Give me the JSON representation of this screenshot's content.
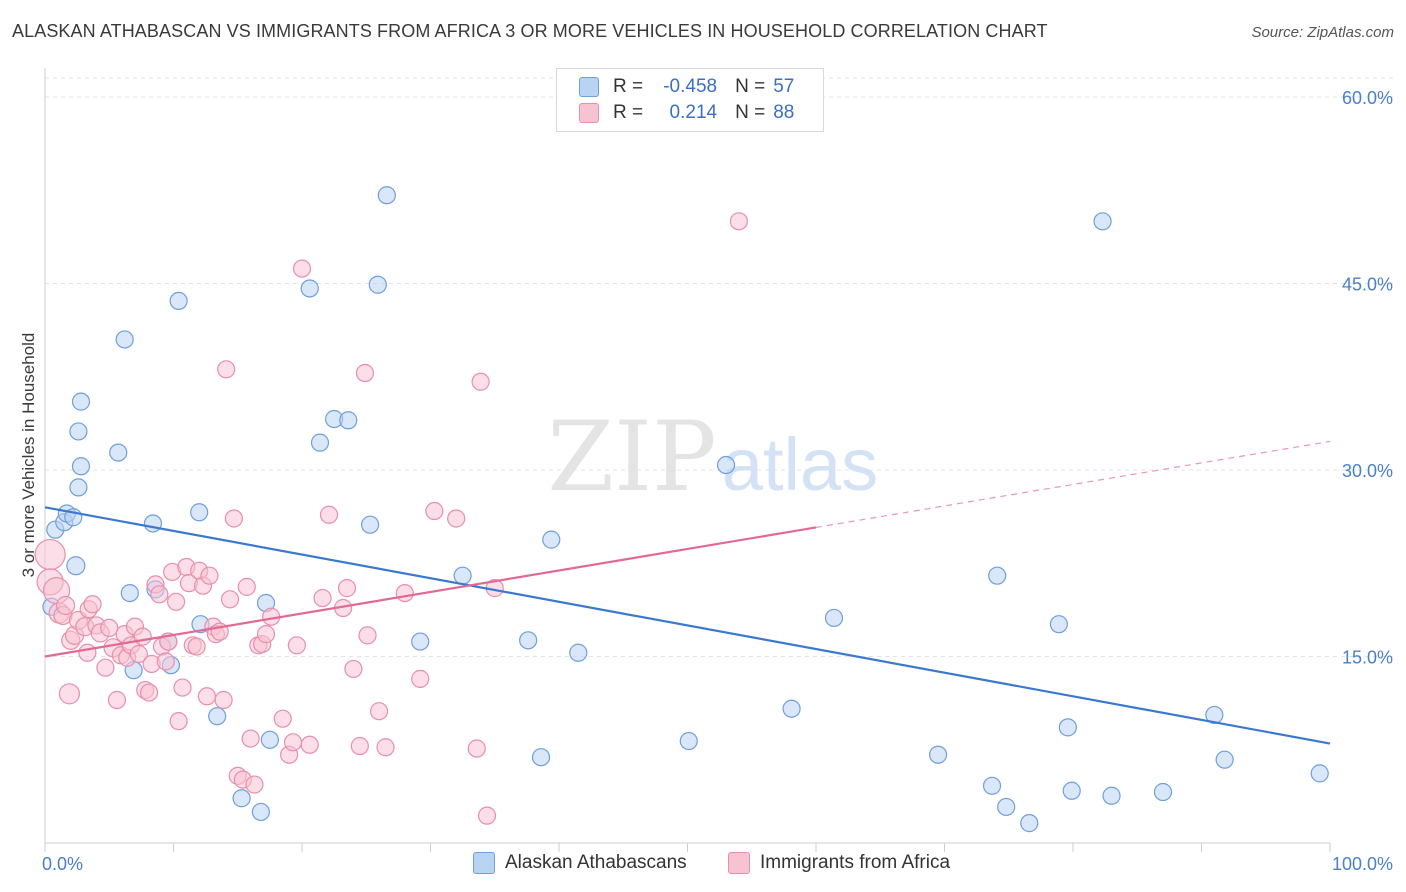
{
  "title": "ALASKAN ATHABASCAN VS IMMIGRANTS FROM AFRICA 3 OR MORE VEHICLES IN HOUSEHOLD CORRELATION CHART",
  "source": "Source: ZipAtlas.com",
  "watermark": {
    "zip": "ZIP",
    "atlas": "atlas"
  },
  "colors": {
    "blue_fill": "#b9d3f3",
    "blue_stroke": "#6f9fdc",
    "blue_line": "#3b78d0",
    "pink_fill": "#f7c3d3",
    "pink_stroke": "#e88fab",
    "pink_line": "#e26a92",
    "tick_text": "#4a7fc9",
    "grid": "#e3e3e3"
  },
  "legend": {
    "rows": [
      {
        "r_label": "R =",
        "r_value": "-0.458",
        "n_label": "N =",
        "n_value": "57"
      },
      {
        "r_label": "R =",
        "r_value": " 0.214",
        "n_label": "N =",
        "n_value": "88"
      }
    ]
  },
  "chart_data": {
    "type": "scatter",
    "xlabel": "",
    "ylabel": "3 or more Vehicles in Household",
    "xlim": [
      0,
      100
    ],
    "ylim": [
      0,
      62
    ],
    "y_ticks": [
      {
        "value": 15,
        "label": "15.0%"
      },
      {
        "value": 30,
        "label": "30.0%"
      },
      {
        "value": 45,
        "label": "45.0%"
      },
      {
        "value": 60,
        "label": "60.0%"
      }
    ],
    "x_ticks": [
      {
        "value": 0,
        "label": "0.0%"
      },
      {
        "value": 100,
        "label": "100.0%"
      }
    ],
    "x_minor_ticks": [
      0,
      10,
      20,
      30,
      40,
      50,
      60,
      70,
      80,
      90,
      100
    ],
    "grid": true,
    "legend_position": "top-center",
    "series": [
      {
        "name": "Alaskan Athabascans",
        "color_key": "blue",
        "trend": {
          "x0": 0,
          "y0": 27.0,
          "x1": 100,
          "y1": 8.0,
          "dashed_from": null
        },
        "points": [
          [
            0.5,
            19.0,
            6
          ],
          [
            0.8,
            25.2,
            7
          ],
          [
            1.5,
            25.8,
            7
          ],
          [
            1.7,
            26.5,
            7
          ],
          [
            2.2,
            26.2,
            7
          ],
          [
            2.6,
            28.6,
            7
          ],
          [
            2.4,
            22.3,
            8
          ],
          [
            2.8,
            30.3,
            7
          ],
          [
            2.6,
            33.1,
            7
          ],
          [
            2.8,
            35.5,
            7
          ],
          [
            5.7,
            31.4,
            7
          ],
          [
            6.2,
            40.5,
            7
          ],
          [
            6.6,
            20.1,
            7
          ],
          [
            6.9,
            13.9,
            7
          ],
          [
            8.4,
            25.7,
            7
          ],
          [
            8.6,
            20.4,
            7
          ],
          [
            9.6,
            16.2,
            7
          ],
          [
            9.8,
            14.3,
            7
          ],
          [
            10.4,
            43.6,
            7
          ],
          [
            12.0,
            26.6,
            7
          ],
          [
            12.1,
            17.6,
            7
          ],
          [
            13.4,
            10.2,
            7
          ],
          [
            15.3,
            3.6,
            7
          ],
          [
            16.8,
            2.5,
            7
          ],
          [
            17.2,
            19.3,
            7
          ],
          [
            17.5,
            8.3,
            7
          ],
          [
            20.6,
            44.6,
            7
          ],
          [
            21.4,
            32.2,
            7
          ],
          [
            22.5,
            34.1,
            7
          ],
          [
            23.6,
            34.0,
            7
          ],
          [
            25.3,
            25.6,
            7
          ],
          [
            25.9,
            44.9,
            7
          ],
          [
            26.6,
            52.1,
            7
          ],
          [
            29.2,
            16.2,
            7
          ],
          [
            32.5,
            21.5,
            7
          ],
          [
            37.6,
            16.3,
            7
          ],
          [
            38.6,
            6.9,
            7
          ],
          [
            39.4,
            24.4,
            7
          ],
          [
            41.5,
            15.3,
            7
          ],
          [
            50.1,
            8.2,
            7
          ],
          [
            53.0,
            30.4,
            7
          ],
          [
            58.1,
            10.8,
            7
          ],
          [
            61.4,
            18.1,
            7
          ],
          [
            69.5,
            7.1,
            7
          ],
          [
            73.7,
            4.6,
            7
          ],
          [
            74.8,
            2.9,
            7
          ],
          [
            74.1,
            21.5,
            7
          ],
          [
            76.6,
            1.6,
            7
          ],
          [
            78.9,
            17.6,
            7
          ],
          [
            79.6,
            9.3,
            7
          ],
          [
            79.9,
            4.2,
            7
          ],
          [
            82.3,
            50.0,
            7
          ],
          [
            83.0,
            3.8,
            7
          ],
          [
            87.0,
            4.1,
            7
          ],
          [
            91.0,
            10.3,
            7
          ],
          [
            91.8,
            6.7,
            7
          ],
          [
            99.2,
            5.6,
            7
          ]
        ]
      },
      {
        "name": "Immigrants from Africa",
        "color_key": "pink",
        "trend": {
          "x0": 0,
          "y0": 15.0,
          "x1": 100,
          "y1": 32.3,
          "dashed_from": 60
        },
        "points": [
          [
            0.4,
            23.2,
            14
          ],
          [
            0.4,
            21.0,
            12
          ],
          [
            0.9,
            20.3,
            12
          ],
          [
            1.1,
            18.5,
            9
          ],
          [
            1.4,
            18.3,
            8
          ],
          [
            1.6,
            19.1,
            8
          ],
          [
            1.9,
            12.0,
            9
          ],
          [
            2.0,
            16.3,
            8
          ],
          [
            2.3,
            16.7,
            8
          ],
          [
            2.6,
            17.9,
            8
          ],
          [
            3.1,
            17.4,
            8
          ],
          [
            3.3,
            15.3,
            7
          ],
          [
            3.4,
            18.8,
            7
          ],
          [
            3.7,
            19.2,
            7
          ],
          [
            4.0,
            17.5,
            7
          ],
          [
            4.3,
            16.9,
            8
          ],
          [
            4.7,
            14.1,
            7
          ],
          [
            5.0,
            17.3,
            7
          ],
          [
            5.3,
            15.7,
            8
          ],
          [
            5.6,
            11.5,
            7
          ],
          [
            5.9,
            15.1,
            7
          ],
          [
            6.2,
            16.8,
            7
          ],
          [
            6.4,
            14.9,
            7
          ],
          [
            6.7,
            15.9,
            7
          ],
          [
            7.0,
            17.4,
            7
          ],
          [
            7.3,
            15.2,
            7
          ],
          [
            7.6,
            16.6,
            7
          ],
          [
            7.8,
            12.3,
            7
          ],
          [
            8.1,
            12.1,
            7
          ],
          [
            8.3,
            14.4,
            7
          ],
          [
            8.6,
            20.8,
            7
          ],
          [
            8.9,
            20.0,
            7
          ],
          [
            9.1,
            15.8,
            7
          ],
          [
            9.4,
            14.6,
            7
          ],
          [
            9.6,
            16.2,
            7
          ],
          [
            9.9,
            21.8,
            7
          ],
          [
            10.2,
            19.4,
            7
          ],
          [
            10.4,
            9.8,
            7
          ],
          [
            10.7,
            12.5,
            7
          ],
          [
            11.0,
            22.2,
            7
          ],
          [
            11.2,
            20.9,
            7
          ],
          [
            11.5,
            15.9,
            7
          ],
          [
            11.8,
            15.8,
            7
          ],
          [
            12.0,
            21.9,
            7
          ],
          [
            12.3,
            20.7,
            7
          ],
          [
            12.6,
            11.8,
            7
          ],
          [
            12.8,
            21.5,
            7
          ],
          [
            13.1,
            17.4,
            7
          ],
          [
            13.3,
            16.8,
            7
          ],
          [
            13.6,
            17.0,
            7
          ],
          [
            13.9,
            11.5,
            7
          ],
          [
            14.1,
            38.1,
            7
          ],
          [
            14.4,
            19.6,
            7
          ],
          [
            14.7,
            26.1,
            7
          ],
          [
            15.0,
            5.4,
            7
          ],
          [
            15.4,
            5.1,
            7
          ],
          [
            15.7,
            20.6,
            7
          ],
          [
            16.0,
            8.4,
            7
          ],
          [
            16.3,
            4.7,
            7
          ],
          [
            16.6,
            15.9,
            7
          ],
          [
            16.9,
            16.0,
            7
          ],
          [
            17.2,
            16.8,
            7
          ],
          [
            17.6,
            18.2,
            7
          ],
          [
            18.5,
            10.0,
            7
          ],
          [
            19.0,
            7.1,
            7
          ],
          [
            19.3,
            8.1,
            7
          ],
          [
            19.6,
            15.9,
            7
          ],
          [
            20.0,
            46.2,
            7
          ],
          [
            20.6,
            7.9,
            7
          ],
          [
            21.6,
            19.7,
            7
          ],
          [
            22.1,
            26.4,
            7
          ],
          [
            23.2,
            18.9,
            7
          ],
          [
            23.5,
            20.5,
            7
          ],
          [
            24.0,
            14.0,
            7
          ],
          [
            24.5,
            7.8,
            7
          ],
          [
            24.9,
            37.8,
            7
          ],
          [
            25.1,
            16.7,
            7
          ],
          [
            26.0,
            10.6,
            7
          ],
          [
            26.5,
            7.7,
            7
          ],
          [
            29.2,
            13.2,
            7
          ],
          [
            30.3,
            26.7,
            7
          ],
          [
            32.0,
            26.1,
            7
          ],
          [
            33.6,
            7.6,
            7
          ],
          [
            33.9,
            37.1,
            7
          ],
          [
            34.4,
            2.2,
            7
          ],
          [
            54.0,
            50.0,
            7
          ],
          [
            35.0,
            20.5,
            7
          ],
          [
            28.0,
            20.1,
            7
          ]
        ]
      }
    ]
  },
  "bottom_legend": [
    {
      "label": "Alaskan Athabascans",
      "color_key": "blue"
    },
    {
      "label": "Immigrants from Africa",
      "color_key": "pink"
    }
  ]
}
